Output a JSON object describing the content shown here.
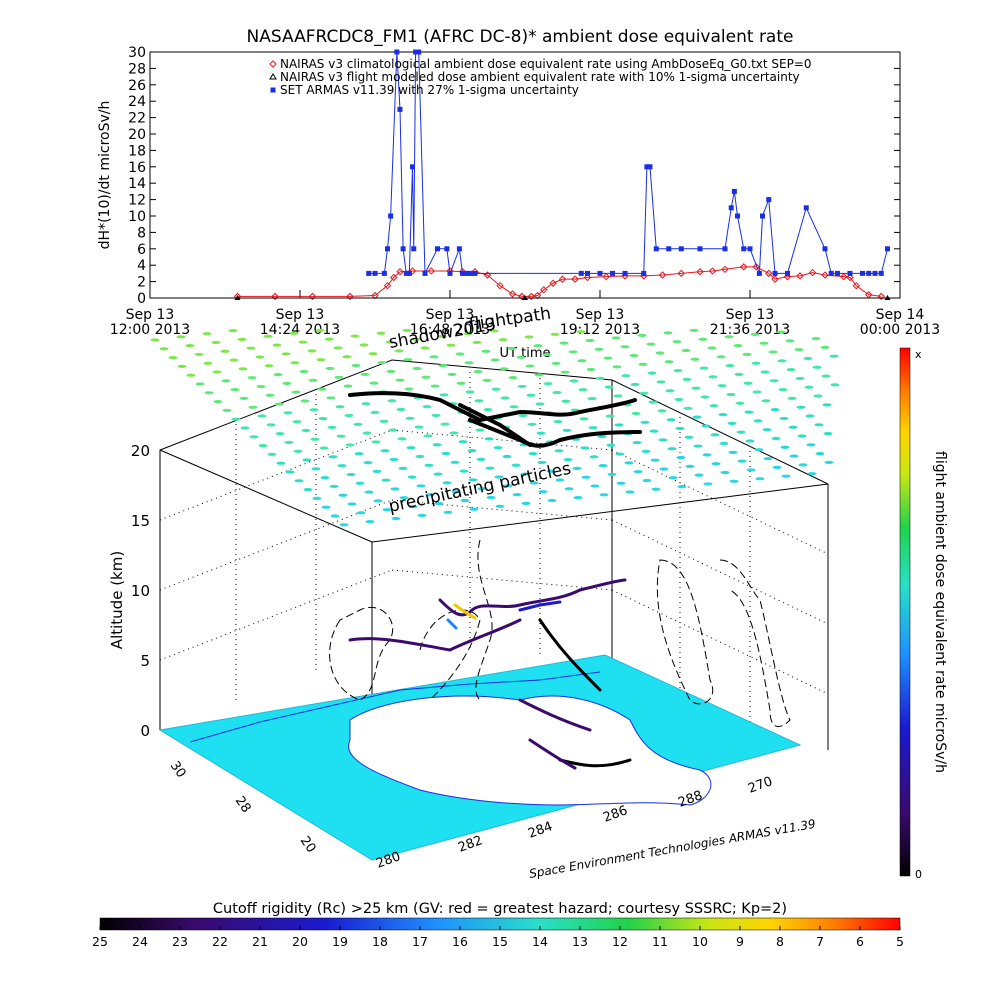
{
  "figure": {
    "title": "NASAAFRCDC8_FM1 (AFRC DC-8)* ambient dose equivalent rate",
    "footer": "Space Environment Technologies ARMAS v11.39",
    "bottom_title": "Cutoff rigidity (Rc) >25 km (GV: red = greatest hazard; courtesy SSSRC; Kp=2)"
  },
  "chart_data": [
    {
      "type": "line",
      "title": "NASAAFRCDC8_FM1 (AFRC DC-8)* ambient dose equivalent rate",
      "xlabel": "UT time",
      "ylabel": "dH*(10)/dt microSv/h",
      "x_unit": "hours since Sep 13 00:00 2013 (UT)",
      "xlim": [
        12.0,
        24.0
      ],
      "ylim": [
        0,
        30
      ],
      "x_ticks": [
        {
          "x": 12.0,
          "line1": "Sep 13",
          "line2": "12:00 2013"
        },
        {
          "x": 14.4,
          "line1": "Sep 13",
          "line2": "14:24 2013"
        },
        {
          "x": 16.8,
          "line1": "Sep 13",
          "line2": "16:48 2013"
        },
        {
          "x": 19.2,
          "line1": "Sep 13",
          "line2": "19:12 2013"
        },
        {
          "x": 21.6,
          "line1": "Sep 13",
          "line2": "21:36 2013"
        },
        {
          "x": 24.0,
          "line1": "Sep 14",
          "line2": "00:00 2013"
        }
      ],
      "y_ticks": [
        0,
        2,
        4,
        6,
        8,
        10,
        12,
        14,
        16,
        18,
        20,
        22,
        24,
        26,
        28,
        30
      ],
      "legend_position": "top",
      "series": [
        {
          "name": "NAIRAS v3 climatological ambient dose equivalent rate using AmbDoseEq_G0.txt SEP=0",
          "color": "#e8161e",
          "marker": "diamond",
          "x": [
            13.4,
            14.0,
            14.6,
            15.2,
            15.6,
            15.8,
            15.9,
            16.0,
            16.2,
            16.5,
            16.8,
            17.0,
            17.2,
            17.4,
            17.6,
            17.8,
            17.95,
            18.1,
            18.2,
            18.3,
            18.45,
            18.6,
            18.8,
            19.0,
            19.3,
            19.6,
            19.9,
            20.2,
            20.5,
            20.8,
            21.0,
            21.2,
            21.5,
            21.7,
            21.9,
            22.0,
            22.2,
            22.4,
            22.6,
            22.8,
            23.1,
            23.2,
            23.3,
            23.5,
            23.7
          ],
          "y": [
            0.2,
            0.2,
            0.2,
            0.2,
            0.3,
            1.5,
            2.5,
            3.2,
            3.3,
            3.3,
            3.3,
            3.2,
            3.2,
            2.8,
            1.5,
            0.5,
            0.2,
            0.2,
            0.3,
            1.0,
            1.8,
            2.3,
            2.3,
            2.5,
            2.6,
            2.7,
            2.7,
            2.8,
            3.0,
            3.2,
            3.3,
            3.5,
            3.8,
            3.8,
            3.0,
            2.3,
            2.6,
            2.7,
            3.1,
            2.8,
            2.6,
            2.5,
            1.5,
            0.4,
            0.2
          ]
        },
        {
          "name": "NAIRAS v3 flight modeled dose ambient equivalent rate with 10% 1-sigma uncertainty",
          "color": "#000000",
          "marker": "triangle",
          "x": [
            13.4,
            18.0,
            23.8
          ],
          "y": [
            0,
            0,
            0
          ]
        },
        {
          "name": "SET ARMAS v11.39 with 27% 1-sigma uncertainty",
          "color": "#1a2ee6",
          "marker": "square",
          "x": [
            15.5,
            15.6,
            15.75,
            15.8,
            15.85,
            15.95,
            16.0,
            16.05,
            16.1,
            16.15,
            16.2,
            16.22,
            16.25,
            16.3,
            16.4,
            16.6,
            16.75,
            16.8,
            16.95,
            17.0,
            17.05,
            17.1,
            17.15,
            17.2,
            18.9,
            19.0,
            19.2,
            19.4,
            19.6,
            19.9,
            19.95,
            20.0,
            20.1,
            20.3,
            20.5,
            20.8,
            21.2,
            21.3,
            21.35,
            21.4,
            21.5,
            21.6,
            21.75,
            21.8,
            21.9,
            22.0,
            22.2,
            22.5,
            22.8,
            22.9,
            23.0,
            23.2,
            23.4,
            23.5,
            23.6,
            23.7,
            23.8
          ],
          "y": [
            3,
            3,
            3,
            6,
            10,
            30,
            23,
            6,
            3,
            3,
            16,
            6,
            30,
            30,
            3,
            6,
            6,
            3,
            6,
            3,
            3,
            3,
            3,
            3,
            3,
            3,
            3,
            3,
            3,
            3,
            16,
            16,
            6,
            6,
            6,
            6,
            6,
            11,
            13,
            10,
            6,
            6,
            3,
            10,
            12,
            3,
            3,
            11,
            6,
            3,
            3,
            3,
            3,
            3,
            3,
            3,
            6
          ]
        }
      ]
    },
    {
      "type": "scatter",
      "title": "",
      "subtype": "3d flight path with dose color scale",
      "zlabel": "Altitude (km)",
      "zlim": [
        0,
        20
      ],
      "z_ticks": [
        0,
        5,
        10,
        15,
        20
      ],
      "lat_ticks": [
        30,
        28,
        20
      ],
      "lon_ticks": [
        280,
        282,
        284,
        286,
        288,
        270
      ],
      "annotations": [
        "flightpath",
        "shadow2013",
        "precipitating particles"
      ],
      "colorbar": {
        "label": "flight ambient dose equivalent rate microSv/h",
        "top": "x",
        "bottom": "0"
      }
    },
    {
      "type": "heatmap",
      "title": "Cutoff rigidity (Rc) >25 km (GV: red = greatest hazard; courtesy SSSRC; Kp=2)",
      "colorbar_ticks": [
        25,
        24,
        23,
        22,
        21,
        20,
        19,
        18,
        17,
        16,
        15,
        14,
        13,
        12,
        11,
        10,
        9,
        8,
        7,
        6,
        5
      ]
    }
  ]
}
